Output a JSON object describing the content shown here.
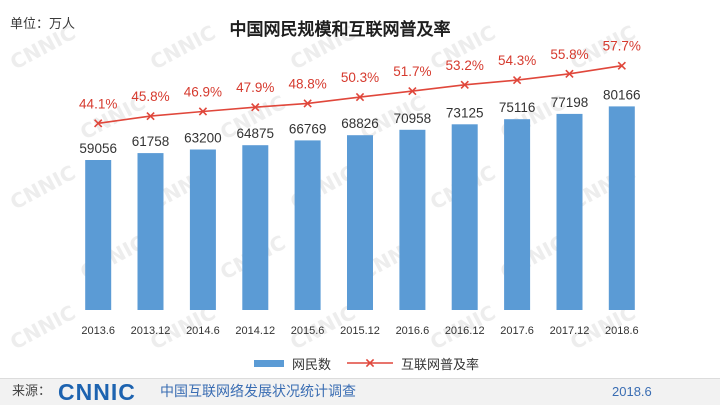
{
  "chart_data": {
    "type": "bar",
    "title": "中国网民规模和互联网普及率",
    "unit_label": "单位：万人",
    "categories": [
      "2013.6",
      "2013.12",
      "2014.6",
      "2014.12",
      "2015.6",
      "2015.12",
      "2016.6",
      "2016.12",
      "2017.6",
      "2017.12",
      "2018.6"
    ],
    "series": [
      {
        "name": "网民数",
        "type": "bar",
        "axis": "primary",
        "values": [
          59056,
          61758,
          63200,
          64875,
          66769,
          68826,
          70958,
          73125,
          75116,
          77198,
          80166
        ],
        "color": "#5b9bd5"
      },
      {
        "name": "互联网普及率",
        "type": "line",
        "axis": "secondary",
        "values": [
          44.1,
          45.8,
          46.9,
          47.9,
          48.8,
          50.3,
          51.7,
          53.2,
          54.3,
          55.8,
          57.7
        ],
        "value_suffix": "%",
        "color": "#e0473b",
        "label_color": "#d63a2e",
        "marker": "cross"
      }
    ],
    "ylim": [
      0,
      100000
    ],
    "y2lim": [
      0,
      60
    ],
    "grid": false,
    "legend": "bottom"
  },
  "footer": {
    "source_label": "来源：",
    "logo_text": "CNNIC",
    "logo_color": "#1d63b0",
    "survey_name": "中国互联网络发展状况统计调查",
    "date": "2018.6"
  },
  "watermark": "CNNIC"
}
